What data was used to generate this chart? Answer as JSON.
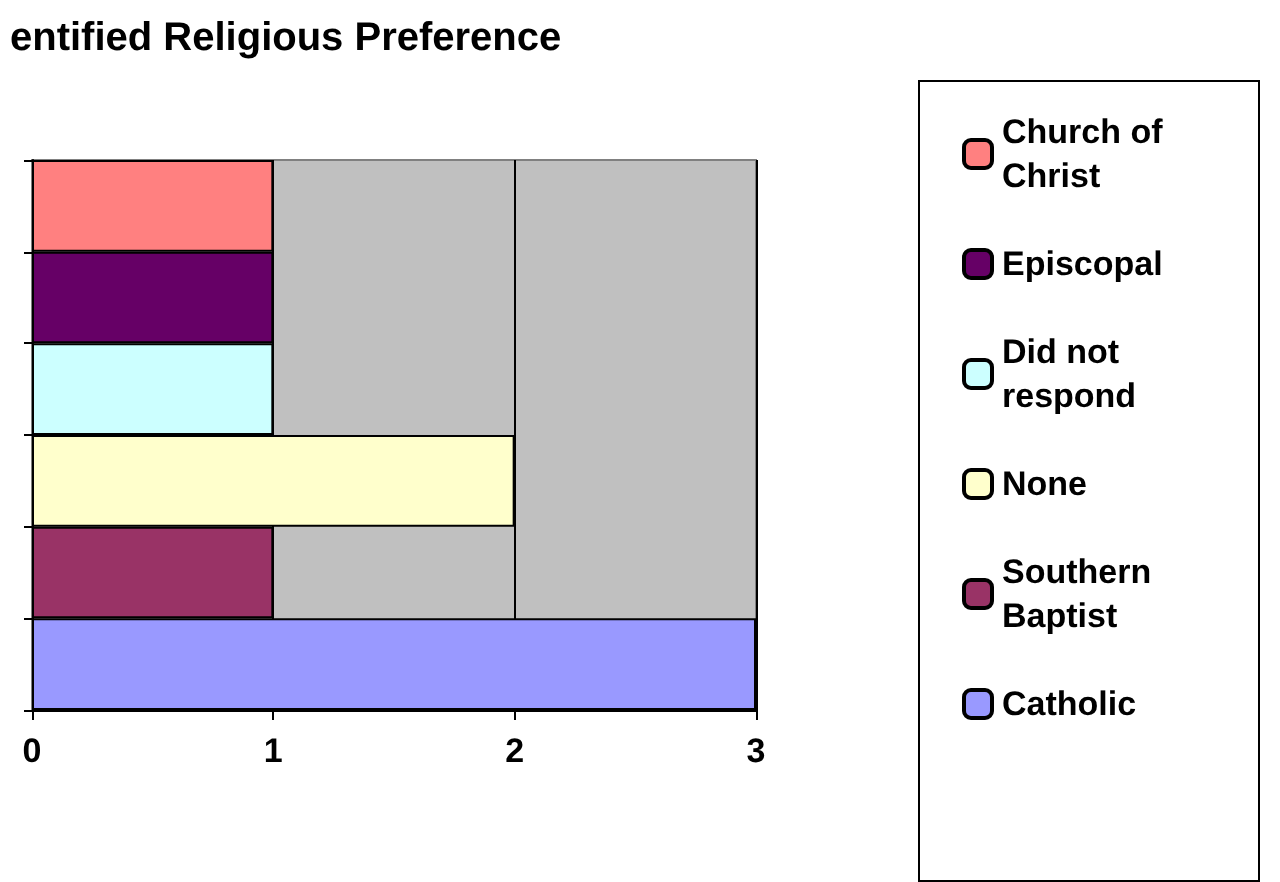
{
  "chart_data": {
    "type": "bar",
    "title": "entified Religious Preference",
    "orientation": "horizontal",
    "stacked": true,
    "categories": [
      null,
      null,
      null,
      null,
      null,
      null
    ],
    "series": [
      {
        "name": "Church of Christ",
        "color": "#ff8080",
        "values": [
          1,
          null,
          null,
          null,
          null,
          null
        ]
      },
      {
        "name": "Episcopal",
        "color": "#660066",
        "values": [
          null,
          1,
          null,
          null,
          null,
          null
        ]
      },
      {
        "name": "Did not respond",
        "color": "#ccffff",
        "values": [
          null,
          null,
          1,
          null,
          null,
          null
        ]
      },
      {
        "name": "None",
        "color": "#ffffcc",
        "values": [
          null,
          null,
          null,
          2,
          null,
          null
        ]
      },
      {
        "name": "Southern Baptist",
        "color": "#993366",
        "values": [
          null,
          null,
          null,
          null,
          1,
          null
        ]
      },
      {
        "name": "Catholic",
        "color": "#9999ff",
        "values": [
          null,
          null,
          null,
          null,
          null,
          3
        ]
      }
    ],
    "xlim": [
      0,
      3
    ],
    "xticks": [
      0,
      1,
      2,
      3
    ],
    "grid": "x",
    "legend": "right"
  }
}
